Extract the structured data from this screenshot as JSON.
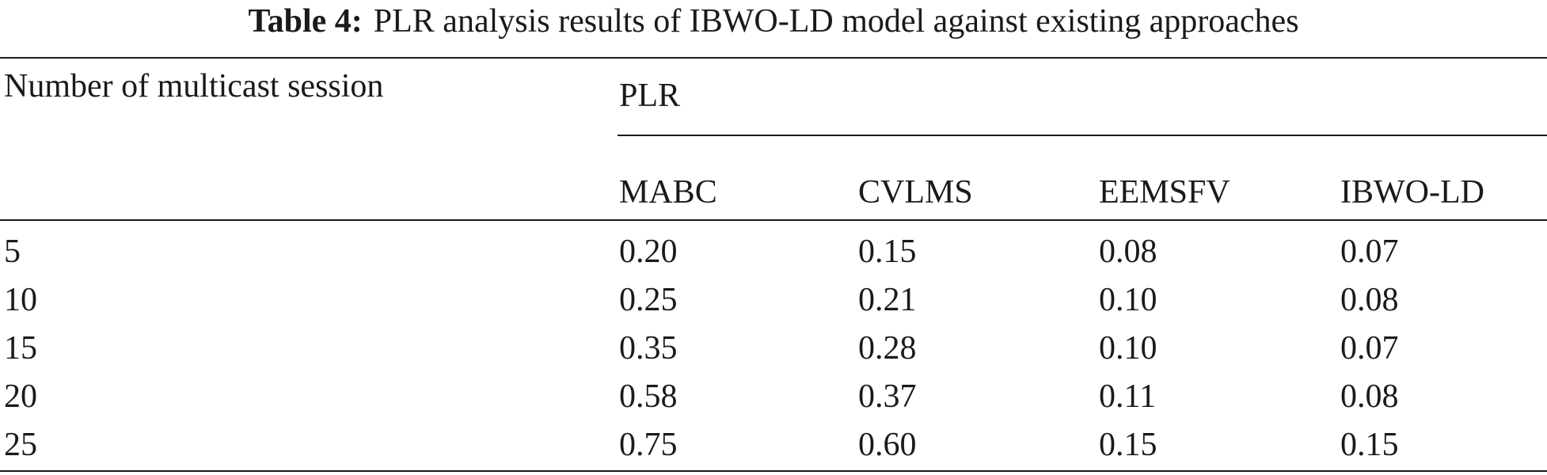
{
  "caption": {
    "label": "Table 4:",
    "text": "PLR analysis results of IBWO-LD model against existing approaches"
  },
  "table": {
    "row_header": "Number of multicast session",
    "group_header": "PLR",
    "columns": [
      "MABC",
      "CVLMS",
      "EEMSFV",
      "IBWO-LD"
    ],
    "rows": [
      [
        "5",
        "0.20",
        "0.15",
        "0.08",
        "0.07"
      ],
      [
        "10",
        "0.25",
        "0.21",
        "0.10",
        "0.08"
      ],
      [
        "15",
        "0.35",
        "0.28",
        "0.10",
        "0.07"
      ],
      [
        "20",
        "0.58",
        "0.37",
        "0.11",
        "0.08"
      ],
      [
        "25",
        "0.75",
        "0.60",
        "0.15",
        "0.15"
      ]
    ]
  }
}
